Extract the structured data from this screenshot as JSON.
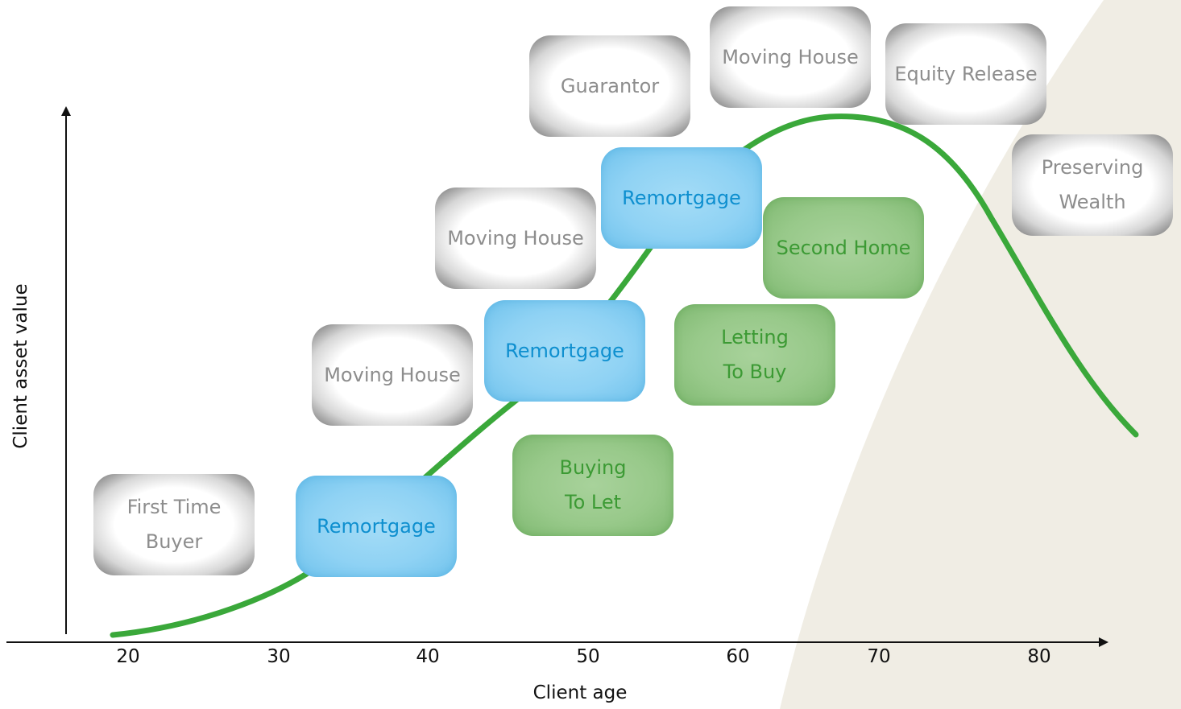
{
  "axes": {
    "x_title": "Client age",
    "y_title": "Client asset value",
    "x_ticks": [
      "20",
      "30",
      "40",
      "50",
      "60",
      "70",
      "80"
    ]
  },
  "colors": {
    "curve": "#3aa83a",
    "retirement_zone": "#f0ede4",
    "axis": "#111111"
  },
  "stages": [
    {
      "id": "first-time-buyer",
      "label": "First Time\nBuyer",
      "style": "grey"
    },
    {
      "id": "remortgage-1",
      "label": "Remortgage",
      "style": "blue"
    },
    {
      "id": "moving-house-1",
      "label": "Moving House",
      "style": "grey"
    },
    {
      "id": "buying-to-let",
      "label": "Buying\nTo Let",
      "style": "green"
    },
    {
      "id": "remortgage-2",
      "label": "Remortgage",
      "style": "blue"
    },
    {
      "id": "moving-house-2",
      "label": "Moving House",
      "style": "grey"
    },
    {
      "id": "letting-to-buy",
      "label": "Letting\nTo Buy",
      "style": "green"
    },
    {
      "id": "guarantor",
      "label": "Guarantor",
      "style": "grey"
    },
    {
      "id": "remortgage-3",
      "label": "Remortgage",
      "style": "blue"
    },
    {
      "id": "second-home",
      "label": "Second Home",
      "style": "green"
    },
    {
      "id": "moving-house-3",
      "label": "Moving House",
      "style": "grey"
    },
    {
      "id": "equity-release",
      "label": "Equity Release",
      "style": "grey"
    },
    {
      "id": "preserving-wealth",
      "label": "Preserving\nWealth",
      "style": "grey"
    }
  ]
}
